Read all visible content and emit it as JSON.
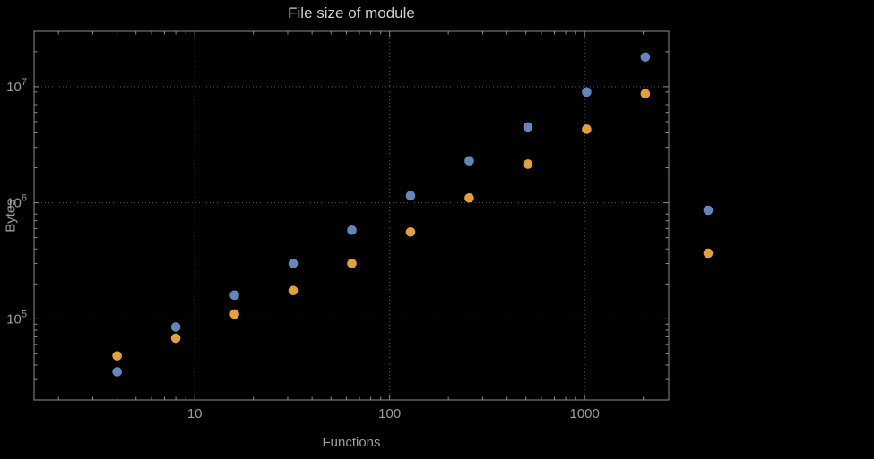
{
  "title": "File size of module",
  "axes": {
    "xlabel": "Functions",
    "ylabel": "Bytes"
  },
  "colors": {
    "background": "#000000",
    "frame": "#8c8c8c",
    "grid": "#5a5a5a",
    "title_text": "#cecece",
    "axis_text": "#9c9c9c",
    "series_blue": "#6287bd",
    "series_orange": "#e4a03a"
  },
  "chart_data": {
    "type": "scatter",
    "title": "File size of module",
    "xlabel": "Functions",
    "ylabel": "Bytes",
    "x_scale": "log",
    "y_scale": "log",
    "x_range": [
      1.5,
      2700
    ],
    "y_range": [
      20000,
      30000000
    ],
    "grid": "dotted",
    "legend_position": "right-outside",
    "x": [
      4,
      8,
      16,
      32,
      64,
      128,
      256,
      512,
      1024,
      2048
    ],
    "series": [
      {
        "name": "series-1-blue",
        "color": "#6287bd",
        "values": [
          35000,
          85000,
          160000,
          300000,
          580000,
          1150000,
          2300000,
          4500000,
          9000000,
          18000000
        ]
      },
      {
        "name": "series-2-orange",
        "color": "#e4a03a",
        "values": [
          48000,
          68000,
          110000,
          175000,
          300000,
          560000,
          1100000,
          2150000,
          4300000,
          8700000
        ]
      }
    ],
    "x_ticks": [
      {
        "value": 10,
        "label": "10"
      },
      {
        "value": 100,
        "label": "100"
      },
      {
        "value": 1000,
        "label": "1000"
      }
    ],
    "y_ticks": [
      {
        "value": 100000,
        "base": "10",
        "exp": "5"
      },
      {
        "value": 1000000,
        "base": "10",
        "exp": "6"
      },
      {
        "value": 10000000,
        "base": "10",
        "exp": "7"
      }
    ],
    "legend": [
      {
        "name": "legend-marker-blue",
        "color": "#6287bd",
        "label": ""
      },
      {
        "name": "legend-marker-orange",
        "color": "#e4a03a",
        "label": ""
      }
    ]
  }
}
